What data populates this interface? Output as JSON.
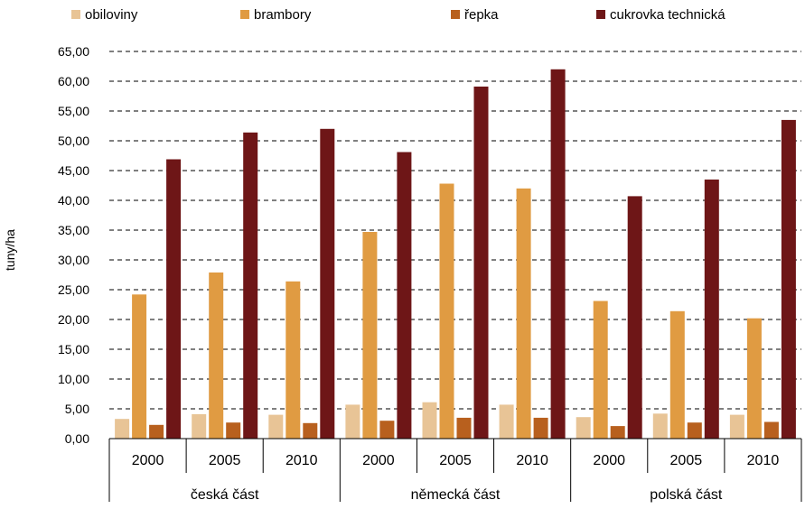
{
  "chart_data": {
    "type": "bar",
    "title": "",
    "xlabel": "",
    "ylabel": "tuny/ha",
    "ylim": [
      0,
      65
    ],
    "ytick_step": 5,
    "ytick_labels": [
      "0,00",
      "5,00",
      "10,00",
      "15,00",
      "20,00",
      "25,00",
      "30,00",
      "35,00",
      "40,00",
      "45,00",
      "50,00",
      "55,00",
      "60,00",
      "65,00"
    ],
    "grid": true,
    "legend_position": "top",
    "groups": [
      {
        "label": "česká část",
        "categories": [
          "2000",
          "2005",
          "2010"
        ]
      },
      {
        "label": "německá část",
        "categories": [
          "2000",
          "2005",
          "2010"
        ]
      },
      {
        "label": "polská část",
        "categories": [
          "2000",
          "2005",
          "2010"
        ]
      }
    ],
    "categories": [
      "2000",
      "2005",
      "2010",
      "2000",
      "2005",
      "2010",
      "2000",
      "2005",
      "2010"
    ],
    "series": [
      {
        "name": "obiloviny",
        "color": "#e8c496",
        "values": [
          3.3,
          4.1,
          4.0,
          5.7,
          6.1,
          5.7,
          3.6,
          4.2,
          4.0
        ]
      },
      {
        "name": "brambory",
        "color": "#e09b42",
        "values": [
          24.2,
          27.9,
          26.4,
          34.7,
          42.8,
          42.0,
          23.1,
          21.4,
          20.2
        ]
      },
      {
        "name": "řepka",
        "color": "#b8601e",
        "values": [
          2.3,
          2.7,
          2.6,
          3.0,
          3.5,
          3.5,
          2.1,
          2.7,
          2.8
        ]
      },
      {
        "name": "cukrovka technická",
        "color": "#6e1617",
        "values": [
          46.9,
          51.4,
          52.0,
          48.1,
          59.1,
          62.0,
          40.7,
          43.5,
          53.5
        ]
      }
    ]
  }
}
